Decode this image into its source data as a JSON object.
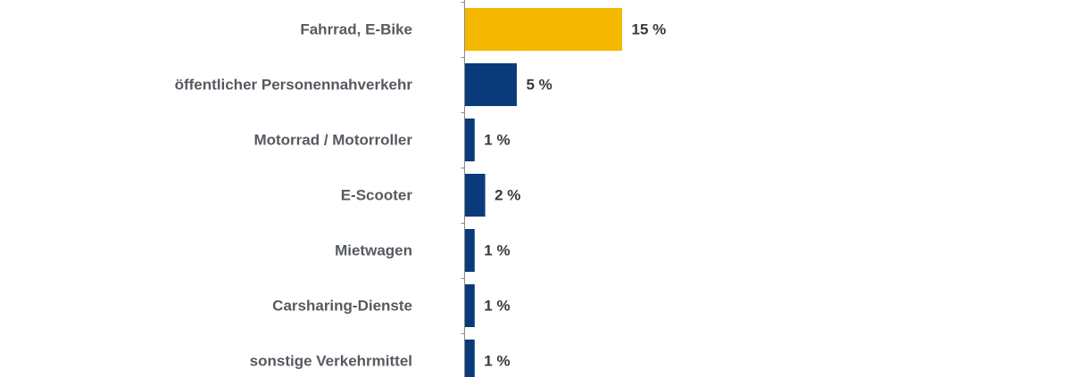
{
  "colors": {
    "highlight": "#f5b800",
    "default": "#0b3a7a"
  },
  "chart_data": {
    "type": "bar",
    "orientation": "horizontal",
    "categories": [
      "Fahrrad, E-Bike",
      "öffentlicher Personennahverkehr",
      "Motorrad / Motorroller",
      "E-Scooter",
      "Mietwagen",
      "Carsharing-Dienste",
      "sonstige Verkehrmittel"
    ],
    "values": [
      15,
      5,
      1,
      2,
      1,
      1,
      1
    ],
    "value_labels": [
      "15 %",
      "5 %",
      "1 %",
      "2 %",
      "1 %",
      "1 %",
      "1 %"
    ],
    "highlight_index": 0,
    "unit": "%",
    "xlim": [
      0,
      100
    ],
    "grid": false,
    "title": "",
    "xlabel": "",
    "ylabel": ""
  }
}
